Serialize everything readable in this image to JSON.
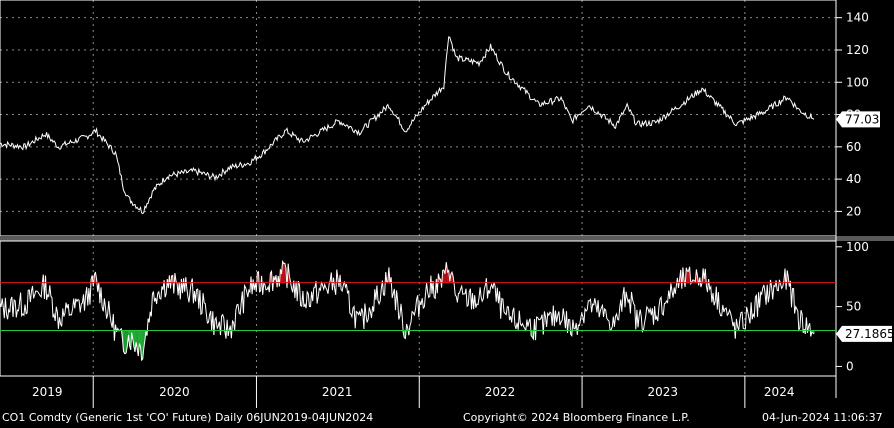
{
  "colors": {
    "background": "#000000",
    "line": "#ffffff",
    "grid": "#8a8a8a",
    "overbought": "#e0141e",
    "oversold": "#27c93f",
    "divider": "#5a5a5a"
  },
  "footer": {
    "security": "CO1 Comdty (Generic 1st 'CO' Future)  Daily 06JUN2019-04JUN2024",
    "copyright": "Copyright© 2024 Bloomberg Finance L.P.",
    "timestamp": "04-Jun-2024 11:06:37"
  },
  "chart_data": [
    {
      "type": "line",
      "panel": "price",
      "ylim": [
        6,
        146
      ],
      "yticks": [
        "140",
        "120",
        "100",
        "80",
        "60",
        "40",
        "20"
      ],
      "last_value_label": "77.03",
      "x_years": [
        "2019",
        "2020",
        "2021",
        "2022",
        "2023",
        "2024"
      ],
      "grid": true,
      "x": [
        "2019-06-06",
        "2019-08-01",
        "2019-09-16",
        "2019-10-15",
        "2019-12-15",
        "2020-01-06",
        "2020-02-20",
        "2020-03-09",
        "2020-03-20",
        "2020-04-21",
        "2020-05-15",
        "2020-06-15",
        "2020-08-15",
        "2020-09-30",
        "2020-11-01",
        "2020-12-15",
        "2021-01-15",
        "2021-03-08",
        "2021-04-15",
        "2021-07-05",
        "2021-08-20",
        "2021-10-25",
        "2021-12-01",
        "2022-01-15",
        "2022-02-25",
        "2022-03-08",
        "2022-03-25",
        "2022-05-15",
        "2022-06-10",
        "2022-07-15",
        "2022-09-26",
        "2022-11-15",
        "2022-12-09",
        "2023-01-15",
        "2023-03-17",
        "2023-04-12",
        "2023-05-04",
        "2023-06-15",
        "2023-08-15",
        "2023-09-27",
        "2023-11-15",
        "2023-12-13",
        "2024-01-15",
        "2024-02-15",
        "2024-04-05",
        "2024-05-01",
        "2024-06-04"
      ],
      "y": [
        62,
        60,
        68,
        60,
        66,
        70,
        56,
        35,
        28,
        20,
        33,
        42,
        45,
        41,
        47,
        50,
        56,
        70,
        63,
        76,
        69,
        86,
        70,
        86,
        98,
        130,
        115,
        112,
        122,
        106,
        86,
        90,
        76,
        86,
        73,
        85,
        74,
        75,
        87,
        96,
        82,
        74,
        78,
        82,
        91,
        83,
        77.03
      ]
    },
    {
      "type": "line",
      "panel": "RSI",
      "ylim": [
        -8,
        104
      ],
      "yticks": [
        "100",
        "50",
        "0"
      ],
      "overbought": 70,
      "oversold": 30,
      "last_value_label": "27.1865",
      "x": [
        "2019-06-06",
        "2019-08-01",
        "2019-09-16",
        "2019-10-15",
        "2019-12-15",
        "2020-01-06",
        "2020-02-20",
        "2020-03-09",
        "2020-03-20",
        "2020-04-21",
        "2020-05-15",
        "2020-06-15",
        "2020-08-15",
        "2020-09-30",
        "2020-11-01",
        "2020-12-15",
        "2021-01-15",
        "2021-03-08",
        "2021-04-15",
        "2021-07-05",
        "2021-08-20",
        "2021-10-25",
        "2021-12-01",
        "2022-01-15",
        "2022-02-25",
        "2022-03-08",
        "2022-03-25",
        "2022-05-15",
        "2022-06-10",
        "2022-07-15",
        "2022-09-26",
        "2022-11-15",
        "2022-12-09",
        "2023-01-15",
        "2023-03-17",
        "2023-04-12",
        "2023-05-04",
        "2023-06-15",
        "2023-08-15",
        "2023-09-27",
        "2023-11-15",
        "2023-12-13",
        "2024-01-15",
        "2024-02-15",
        "2024-04-05",
        "2024-05-01",
        "2024-06-04"
      ],
      "y": [
        48,
        52,
        68,
        40,
        55,
        72,
        30,
        18,
        25,
        14,
        60,
        70,
        62,
        35,
        30,
        65,
        70,
        78,
        55,
        72,
        35,
        75,
        30,
        62,
        72,
        85,
        58,
        55,
        68,
        40,
        32,
        45,
        30,
        52,
        35,
        64,
        38,
        45,
        72,
        76,
        48,
        30,
        45,
        60,
        72,
        40,
        27.19
      ]
    }
  ]
}
